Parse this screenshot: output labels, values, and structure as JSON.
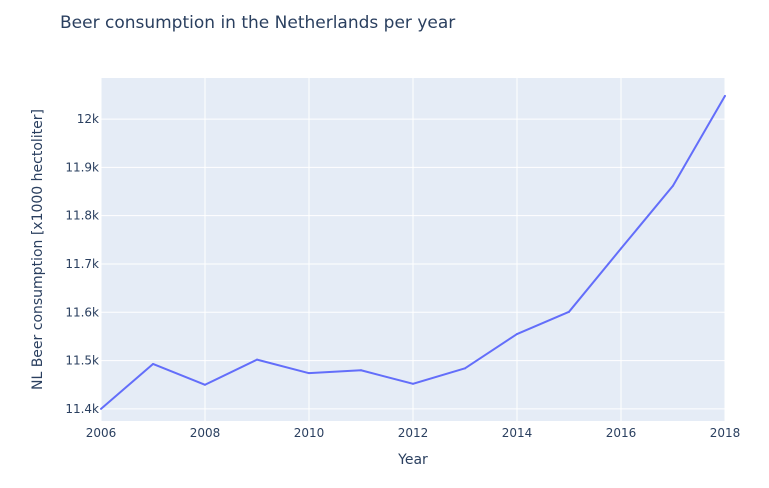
{
  "chart_data": {
    "type": "line",
    "title": "Beer consumption in the Netherlands per year",
    "xlabel": "Year",
    "ylabel": "NL Beer consumption [x1000 hectoliter]",
    "x": [
      2006,
      2007,
      2008,
      2009,
      2010,
      2011,
      2012,
      2013,
      2014,
      2015,
      2016,
      2017,
      2018
    ],
    "series": [
      {
        "values": [
          11400,
          11493,
          11450,
          11502,
          11474,
          11480,
          11452,
          11484,
          11555,
          11601,
          11732,
          11862,
          12048
        ]
      }
    ],
    "xlim": [
      2006,
      2018
    ],
    "ylim": [
      11375,
      12085
    ],
    "x_ticks": [
      2006,
      2008,
      2010,
      2012,
      2014,
      2016,
      2018
    ],
    "x_tick_labels": [
      "2006",
      "2008",
      "2010",
      "2012",
      "2014",
      "2016",
      "2018"
    ],
    "y_ticks": [
      11400,
      11500,
      11600,
      11700,
      11800,
      11900,
      12000
    ],
    "y_tick_labels": [
      "11.4k",
      "11.5k",
      "11.6k",
      "11.7k",
      "11.8k",
      "11.9k",
      "12k"
    ],
    "grid": true,
    "legend": "none",
    "colors": {
      "line": "#636efa",
      "plot_background": "#e5ecf6",
      "grid": "#ffffff",
      "text": "#2a3f5f"
    }
  }
}
